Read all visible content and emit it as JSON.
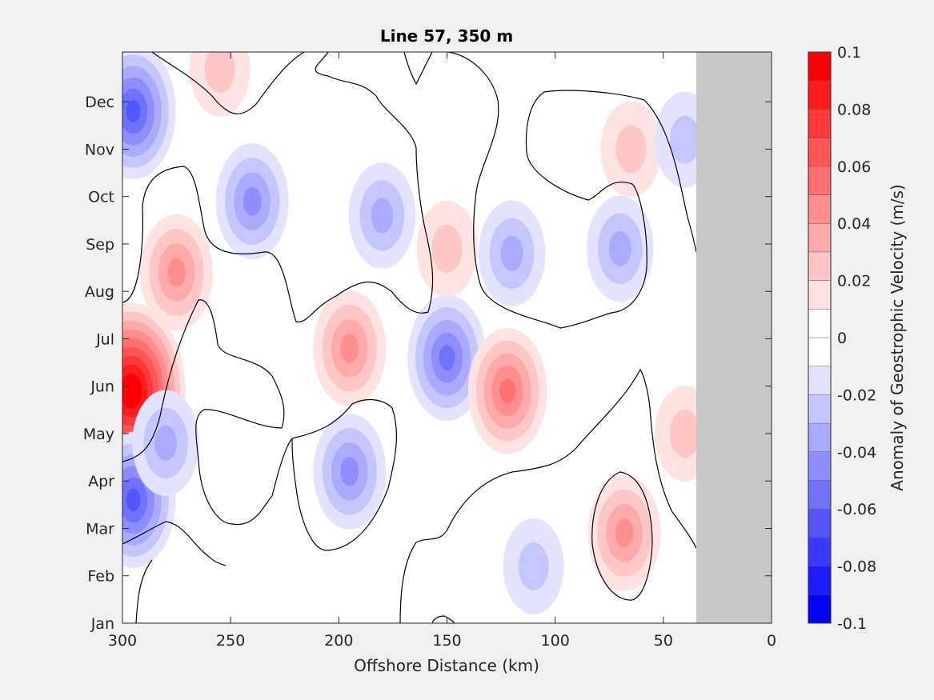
{
  "chart_data": {
    "type": "heatmap",
    "title": "Line 57, 350 m",
    "xlabel": "Offshore Distance (km)",
    "ylabel": "",
    "xlim": [
      300,
      0
    ],
    "x_reversed": true,
    "x_ticks": [
      300,
      250,
      200,
      150,
      100,
      50,
      0
    ],
    "y_ticks": [
      "Jan",
      "Feb",
      "Mar",
      "Apr",
      "May",
      "Jun",
      "Jul",
      "Aug",
      "Sep",
      "Oct",
      "Nov",
      "Dec"
    ],
    "no_data_region_km": [
      0,
      33
    ],
    "no_data_color": "#c8c8c8",
    "zero_contour_color": "#000000",
    "colorbar": {
      "label": "Anomaly of Geostrophic Velocity (m/s)",
      "range": [
        -0.1,
        0.1
      ],
      "ticks": [
        "0.1",
        "0.08",
        "0.06",
        "0.04",
        "0.02",
        "0",
        "-0.02",
        "-0.04",
        "-0.06",
        "-0.08",
        "-0.1"
      ],
      "levels_low_to_high": [
        "#0000ff",
        "#1c1cff",
        "#3939ff",
        "#5555ff",
        "#7171ff",
        "#8e8eff",
        "#aaaaff",
        "#c6c6ff",
        "#e3e3ff",
        "#ffffff",
        "#ffffff",
        "#ffe3e3",
        "#ffc6c6",
        "#ffaaaa",
        "#ff8e8e",
        "#ff7171",
        "#ff5555",
        "#ff3939",
        "#ff1c1c",
        "#ff0000"
      ]
    },
    "features": [
      {
        "x_km": 296,
        "month": 5.9,
        "value": 0.1
      },
      {
        "x_km": 275,
        "month": 8.4,
        "value": 0.04
      },
      {
        "x_km": 295,
        "month": 11.8,
        "value": -0.06
      },
      {
        "x_km": 240,
        "month": 9.9,
        "value": -0.04
      },
      {
        "x_km": 180,
        "month": 9.6,
        "value": -0.03
      },
      {
        "x_km": 195,
        "month": 6.8,
        "value": 0.04
      },
      {
        "x_km": 150,
        "month": 6.6,
        "value": -0.05
      },
      {
        "x_km": 122,
        "month": 5.9,
        "value": 0.05
      },
      {
        "x_km": 195,
        "month": 4.2,
        "value": -0.04
      },
      {
        "x_km": 120,
        "month": 8.8,
        "value": -0.03
      },
      {
        "x_km": 70,
        "month": 8.9,
        "value": -0.03
      },
      {
        "x_km": 68,
        "month": 2.9,
        "value": 0.04
      },
      {
        "x_km": 295,
        "month": 3.6,
        "value": -0.06
      },
      {
        "x_km": 280,
        "month": 4.8,
        "value": -0.03
      },
      {
        "x_km": 150,
        "month": 8.9,
        "value": 0.02
      },
      {
        "x_km": 40,
        "month": 5.0,
        "value": 0.02
      },
      {
        "x_km": 65,
        "month": 11.0,
        "value": 0.02
      },
      {
        "x_km": 40,
        "month": 11.2,
        "value": -0.02
      },
      {
        "x_km": 255,
        "month": 12.7,
        "value": 0.02
      },
      {
        "x_km": 110,
        "month": 2.2,
        "value": -0.02
      }
    ]
  }
}
